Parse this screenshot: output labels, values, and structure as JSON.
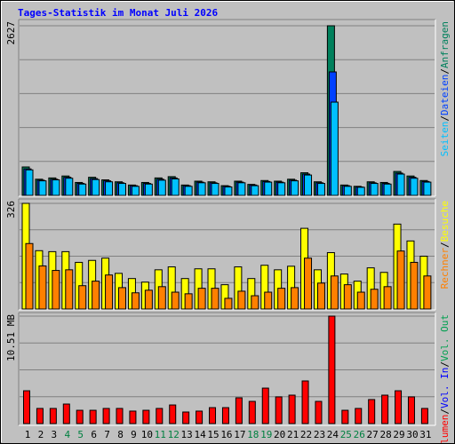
{
  "legend_separator": "/",
  "chart_data": [
    {
      "type": "bar",
      "title": "Tages-Statistik im Monat Juli 2026",
      "ylim": [
        0,
        2627
      ],
      "yticks": [
        2627
      ],
      "series": [
        {
          "name": "Seiten",
          "color": "#00c0ff",
          "values": [
            395,
            225,
            240,
            265,
            175,
            245,
            210,
            185,
            140,
            175,
            235,
            255,
            140,
            195,
            185,
            130,
            195,
            150,
            205,
            195,
            225,
            315,
            185,
            1444,
            140,
            125,
            185,
            175,
            330,
            265,
            205
          ]
        },
        {
          "name": "Dateien",
          "color": "#0040ff",
          "values": [
            410,
            235,
            250,
            280,
            185,
            260,
            225,
            195,
            150,
            185,
            250,
            270,
            150,
            205,
            195,
            140,
            205,
            160,
            215,
            205,
            235,
            330,
            195,
            1912,
            150,
            130,
            195,
            185,
            345,
            280,
            215
          ]
        },
        {
          "name": "Anfragen",
          "color": "#00805c",
          "values": [
            440,
            250,
            270,
            300,
            200,
            280,
            240,
            210,
            160,
            200,
            270,
            290,
            160,
            220,
            210,
            150,
            220,
            170,
            230,
            220,
            250,
            350,
            210,
            2627,
            160,
            140,
            210,
            200,
            370,
            300,
            230
          ]
        }
      ]
    },
    {
      "type": "bar",
      "ylim": [
        0,
        326
      ],
      "yticks": [
        326
      ],
      "series": [
        {
          "name": "Rechner",
          "color": "#ff8000",
          "values": [
            202,
            133,
            119,
            121,
            72,
            86,
            105,
            66,
            50,
            58,
            69,
            52,
            47,
            64,
            64,
            33,
            55,
            41,
            52,
            64,
            66,
            157,
            80,
            102,
            75,
            52,
            61,
            69,
            179,
            144,
            102
          ]
        },
        {
          "name": "Besuche",
          "color": "#ffff00",
          "values": [
            326,
            180,
            177,
            177,
            144,
            150,
            157,
            110,
            94,
            83,
            121,
            130,
            94,
            124,
            124,
            75,
            130,
            94,
            135,
            121,
            132,
            249,
            121,
            174,
            108,
            86,
            127,
            113,
            262,
            210,
            163
          ]
        }
      ]
    },
    {
      "type": "bar",
      "ylim": [
        0,
        10.51
      ],
      "yticks": [
        {
          "value": 10.51,
          "label": "10.51 MB"
        }
      ],
      "categories": [
        "1",
        "2",
        "3",
        "4",
        "5",
        "6",
        "7",
        "8",
        "9",
        "10",
        "11",
        "12",
        "13",
        "14",
        "15",
        "16",
        "17",
        "18",
        "19",
        "20",
        "21",
        "22",
        "23",
        "24",
        "25",
        "26",
        "27",
        "28",
        "29",
        "30",
        "31"
      ],
      "category_colors": [
        "#000000",
        "#000000",
        "#000000",
        "#008040",
        "#008040",
        "#000000",
        "#000000",
        "#000000",
        "#000000",
        "#000000",
        "#008040",
        "#008040",
        "#000000",
        "#000000",
        "#000000",
        "#000000",
        "#000000",
        "#008040",
        "#008040",
        "#000000",
        "#000000",
        "#000000",
        "#000000",
        "#000000",
        "#008040",
        "#008040",
        "#000000",
        "#000000",
        "#000000",
        "#000000",
        "#000000"
      ],
      "series": [
        {
          "name": "Volumen",
          "color": "#ff0000",
          "values": [
            3.21,
            1.48,
            1.48,
            1.91,
            1.3,
            1.3,
            1.48,
            1.48,
            1.22,
            1.3,
            1.48,
            1.82,
            1.13,
            1.22,
            1.56,
            1.56,
            2.52,
            2.17,
            3.47,
            2.61,
            2.78,
            4.17,
            2.17,
            10.51,
            1.3,
            1.48,
            2.35,
            2.78,
            3.21,
            2.61,
            1.48
          ]
        }
      ],
      "legend_only": [
        {
          "name": "Vol. In",
          "color": "#0000ff"
        },
        {
          "name": "Vol. Out",
          "color": "#00a050"
        }
      ]
    }
  ]
}
